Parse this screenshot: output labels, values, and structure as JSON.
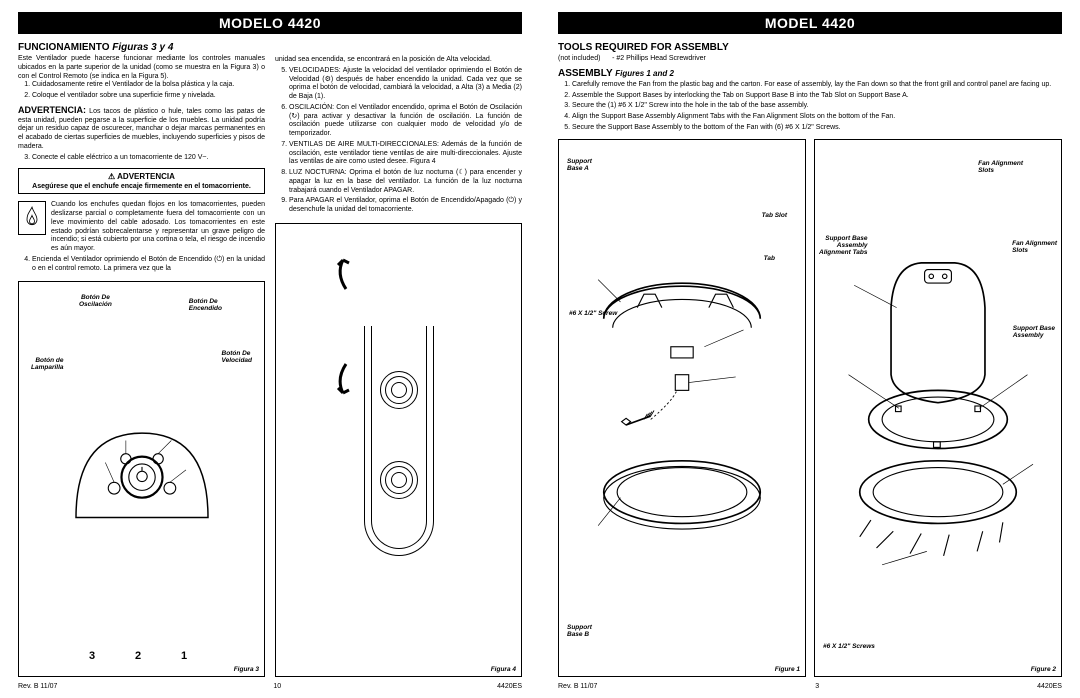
{
  "left": {
    "title": "MODELO 4420",
    "section1_head": "FUNCIONAMIENTO",
    "section1_ital": "Figuras 3 y 4",
    "intro": "Este Ventilador puede hacerse funcionar mediante los controles manuales ubicados en la parte superior de la unidad (como se muestra en la Figura 3) o con el Control Remoto (se indica en la Figura 5).",
    "steps_a": [
      "Cuidadosamente retire el Ventilador de la bolsa plástica y la caja.",
      "Coloque el ventilador sobre una superficie firme y nivelada."
    ],
    "advert_head": "ADVERTENCIA:",
    "advert_text": "Los tacos de plástico o hule, tales como las patas de esta unidad, pueden pegarse a la superficie de los muebles. La unidad podría dejar un residuo capaz de oscurecer, manchar o dejar marcas permanentes en el acabado de ciertas superficies de muebles, incluyendo superficies y pisos de madera.",
    "step3": "Conecte el cable eléctrico a un tomacorriente de 120 V~.",
    "warn_title": "⚠ ADVERTENCIA",
    "warn_bold": "Asegúrese que el enchufe encaje firmemente en el tomacorriente.",
    "warn_body": "Cuando los enchufes quedan flojos en los tomacorrientes, pueden deslizarse parcial o completamente fuera del tomacorriente con un leve movimiento del cable adosado. Los tomacorrientes en este estado podrían sobrecalentarse y representar un grave peligro de incendio; si está cubierto por una cortina o tela, el riesgo de incendio es aún mayor.",
    "step4": "Encienda el Ventilador oprimiendo el Botón de Encendido (⏻) en la unidad o en el control remoto. La primera vez que la",
    "col2_top": "unidad sea encendida, se encontrará en la posición de Alta velocidad.",
    "steps_b": [
      "VELOCIDADES: Ajuste la velocidad del ventilador oprimiendo el Botón de Velocidad (⚙) después de haber encendido la unidad. Cada vez que se oprima el botón de velocidad, cambiará la velocidad, a Alta (3) a Media (2) de Baja (1).",
      "OSCILACIÓN: Con el Ventilador encendido, oprima el Botón de Oscilación (↻) para activar y desactivar la función de oscilación. La función de oscilación puede utilizarse con cualquier modo de velocidad y/o de temporizador.",
      "VENTILAS DE AIRE MULTI-DIRECCIONALES: Además de la función de oscilación, este ventilador tiene ventilas de aire multi-direccionales. Ajuste las ventilas de aire como usted desee. Figura 4",
      "LUZ NOCTURNA: Oprima el botón de luz nocturna (☾) para encender y apagar la luz en la base del ventilador. La función de la luz nocturna trabajará cuando el Ventilador APAGAR.",
      "Para APAGAR el Ventilador, oprima el Botón de Encendido/Apagado (⏻) y desenchufe la unidad del tomacorriente."
    ],
    "fig3": {
      "caption": "Figura 3",
      "labels": {
        "lamp": "Botón de\nLamparilla",
        "osc": "Botón De\nOscilación",
        "on": "Botón De\nEncendido",
        "speed": "Botón De\nVelocidad",
        "n1": "1",
        "n2": "2",
        "n3": "3"
      }
    },
    "fig4_caption": "Figura 4",
    "footer": {
      "rev": "Rev. B 11/07",
      "page": "10",
      "code": "4420ES"
    }
  },
  "right": {
    "title": "MODEL 4420",
    "tools_head": "TOOLS REQUIRED FOR ASSEMBLY",
    "tools_text": "(not included)      - #2 Phillips Head Screwdriver",
    "asm_head": "ASSEMBLY",
    "asm_ital": "Figures 1 and 2",
    "steps": [
      "Carefully remove the Fan from the plastic bag and the carton. For ease of assembly, lay the Fan down so that the front grill and control panel are facing up.",
      "Assemble the Support Bases by interlocking the Tab on Support Base B into the Tab Slot on Support Base A.",
      "Secure the (1) #6 X 1/2\" Screw into the hole in the tab of the base assembly.",
      "Align the Support Base Assembly Alignment Tabs with the Fan Alignment Slots on the bottom of the Fan.",
      "Secure the Support Base Assembly to the bottom of the Fan with (6) #6 X 1/2\" Screws."
    ],
    "fig1": {
      "caption": "Figure 1",
      "labels": {
        "baseA": "Support\nBase A",
        "tabslot": "Tab Slot",
        "tab": "Tab",
        "screw": "#6 X 1/2\" Screw",
        "baseB": "Support\nBase B"
      }
    },
    "fig2": {
      "caption": "Figure 2",
      "labels": {
        "slots1": "Fan Alignment\nSlots",
        "sbtabs": "Support Base\nAssembly\nAlignment Tabs",
        "slots2": "Fan Alignment\nSlots",
        "sba": "Support Base\nAssembly",
        "screws": "#6 X 1/2\" Screws"
      }
    },
    "footer": {
      "rev": "Rev. B 11/07",
      "page": "3",
      "code": "4420ES"
    }
  },
  "colors": {
    "black": "#000000",
    "white": "#ffffff"
  }
}
